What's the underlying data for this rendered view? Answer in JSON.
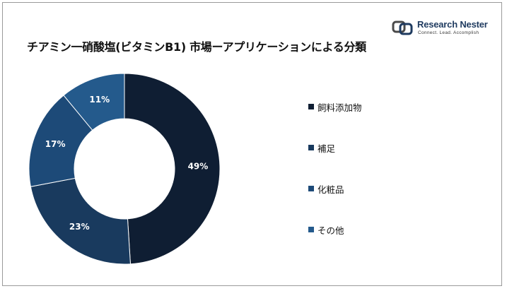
{
  "brand": {
    "name": "Research Nester",
    "tagline": "Connect. Lead. Accomplish"
  },
  "chart_data": {
    "type": "pie",
    "variant": "donut",
    "title": "チアミン一硝酸塩(ビタミンB1) 市場ーアプリケーションによる分類",
    "start_angle_deg": 0,
    "direction": "clockwise",
    "legend_position": "right",
    "slices": [
      {
        "label": "飼料添加物",
        "value": 49,
        "display": "49%",
        "color": "#0f1e33"
      },
      {
        "label": "補足",
        "value": 23,
        "display": "23%",
        "color": "#193a5e"
      },
      {
        "label": "化粧品",
        "value": 17,
        "display": "17%",
        "color": "#1d4a78"
      },
      {
        "label": "その他",
        "value": 11,
        "display": "11%",
        "color": "#245a8c"
      }
    ]
  }
}
